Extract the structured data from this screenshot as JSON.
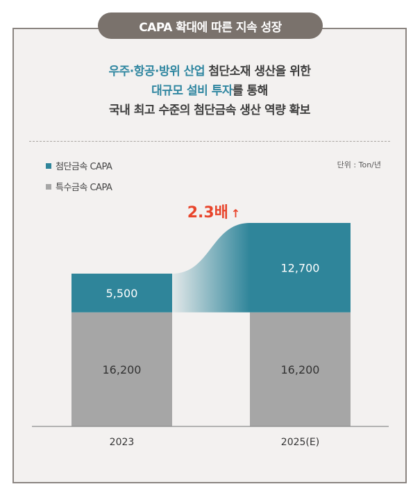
{
  "title": "CAPA 확대에 따른 지속 성장",
  "headline": {
    "line1_accent": "우주·항공·방위 산업",
    "line1_rest": " 첨단소재 생산을 위한",
    "line2_accent": "대규모 설비 투자",
    "line2_rest": "를 통해",
    "line3": "국내 최고 수준의 첨단금속 생산 역량 확보"
  },
  "unit_label": "단위 : Ton/년",
  "growth_label": "2.3배",
  "growth_arrow": "↑",
  "colors": {
    "advanced": "#2f859a",
    "special": "#a6a6a6",
    "accent_text": "#2f86a0",
    "growth": "#e8452c"
  },
  "chart_data": {
    "type": "bar",
    "stacked": true,
    "categories": [
      "2023",
      "2025(E)"
    ],
    "series": [
      {
        "name": "특수금속 CAPA",
        "values": [
          16200,
          16200
        ],
        "color": "#a6a6a6"
      },
      {
        "name": "첨단금속 CAPA",
        "values": [
          5500,
          12700
        ],
        "color": "#2f859a"
      }
    ],
    "ylim": [
      0,
      29000
    ],
    "legend": [
      "첨단금속 CAPA",
      "특수금속 CAPA"
    ],
    "annotation": "2.3배 ↑"
  }
}
